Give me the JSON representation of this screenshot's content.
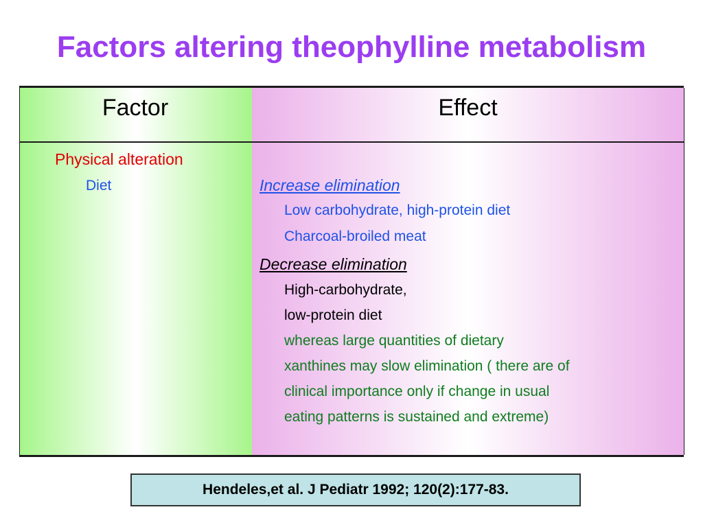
{
  "title": "Factors altering theophylline metabolism",
  "table": {
    "headers": {
      "factor": "Factor",
      "effect": "Effect"
    },
    "factor": {
      "category": "Physical alteration",
      "item": "Diet"
    },
    "effect": {
      "increase_heading": "Increase elimination",
      "increase_items": [
        "Low carbohydrate, high-protein  diet",
        "Charcoal-broiled meat"
      ],
      "decrease_heading": "Decrease elimination",
      "decrease_items": [
        "High-carbohydrate,",
        "low-protein diet"
      ],
      "note_lines": [
        "whereas  large quantities of dietary",
        "xanthines may slow elimination ( there are of",
        "clinical importance only if change in usual",
        "eating patterns is sustained and extreme)"
      ]
    }
  },
  "citation": "Hendeles,et al. J Pediatr 1992; 120(2):177-83.",
  "colors": {
    "title": "#9b3df0",
    "factor_column": "#a6f58a",
    "effect_column": "#ebb2ea",
    "citation_box": "#bfe3e6"
  }
}
